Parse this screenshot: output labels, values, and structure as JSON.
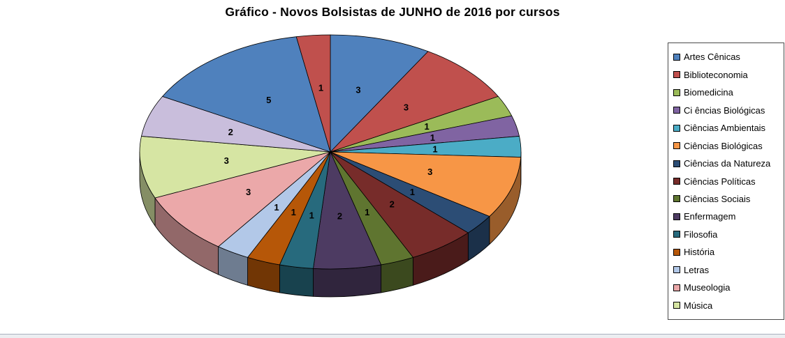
{
  "title": "Gráfico - Novos Bolsistas de JUNHO de 2016 por cursos",
  "chart_data": {
    "type": "pie",
    "style": "3d",
    "title": "Gráfico - Novos Bolsistas de JUNHO de 2016 por cursos",
    "total": 35,
    "start_angle_deg": 0,
    "direction": "clockwise",
    "data_labels": "values",
    "legend_position": "right",
    "legend_visible_count": 15,
    "slices": [
      {
        "label": "Artes Cênicas",
        "value": 3,
        "color": "#4F81BD"
      },
      {
        "label": "Biblioteconomia",
        "value": 3,
        "color": "#C0504D"
      },
      {
        "label": "Biomedicina",
        "value": 1,
        "color": "#9BBB59"
      },
      {
        "label": "Ci ências Biológicas",
        "value": 1,
        "color": "#8064A2"
      },
      {
        "label": "Ciências Ambientais",
        "value": 1,
        "color": "#4BACC6"
      },
      {
        "label": "Ciências Biológicas",
        "value": 3,
        "color": "#F79646"
      },
      {
        "label": "Ciências da Natureza",
        "value": 1,
        "color": "#2C4D75"
      },
      {
        "label": "Ciências Políticas",
        "value": 2,
        "color": "#772C2A"
      },
      {
        "label": "Ciências Sociais",
        "value": 1,
        "color": "#5F7530"
      },
      {
        "label": "Enfermagem",
        "value": 2,
        "color": "#4D3B62"
      },
      {
        "label": "Filosofia",
        "value": 1,
        "color": "#276A7D"
      },
      {
        "label": "História",
        "value": 1,
        "color": "#B65708"
      },
      {
        "label": "Letras",
        "value": 1,
        "color": "#B2C8E8"
      },
      {
        "label": "Museologia",
        "value": 3,
        "color": "#EBA8A9"
      },
      {
        "label": "Música",
        "value": 3,
        "color": "#D6E5A3"
      },
      {
        "label": null,
        "value": 2,
        "color": "#C9BEDC"
      },
      {
        "label": null,
        "value": 5,
        "color": "#4F81BD"
      },
      {
        "label": null,
        "value": 1,
        "color": "#C0504D"
      }
    ]
  }
}
